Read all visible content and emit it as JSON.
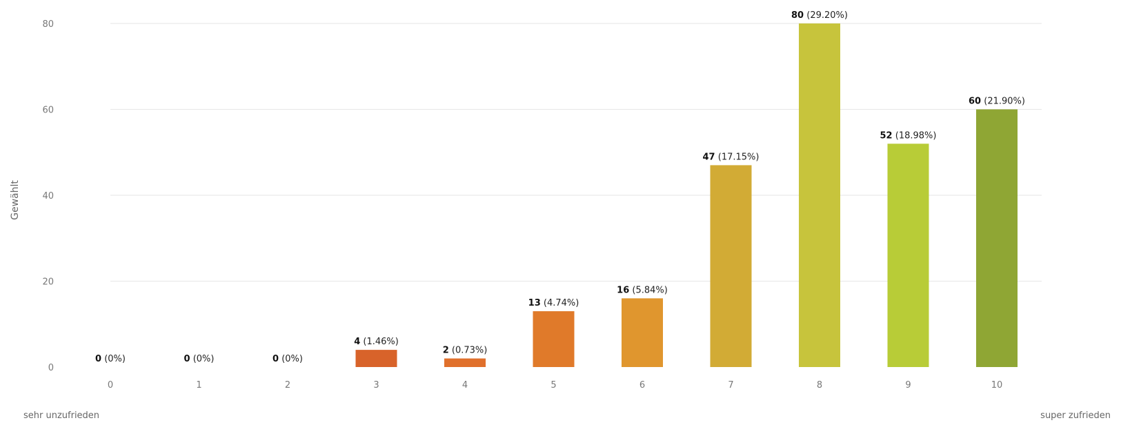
{
  "chart_data": {
    "type": "bar",
    "categories": [
      "0",
      "1",
      "2",
      "3",
      "4",
      "5",
      "6",
      "7",
      "8",
      "9",
      "10"
    ],
    "values": [
      0,
      0,
      0,
      4,
      2,
      13,
      16,
      47,
      80,
      52,
      60
    ],
    "percent_labels": [
      "(0%)",
      "(0%)",
      "(0%)",
      "(1.46%)",
      "(0.73%)",
      "(4.74%)",
      "(5.84%)",
      "(17.15%)",
      "(29.20%)",
      "(18.98%)",
      "(21.90%)"
    ],
    "colors": [
      "#c0392b",
      "#c84a27",
      "#d05a26",
      "#d8632a",
      "#e0702c",
      "#e07a2a",
      "#e0962e",
      "#d2ab35",
      "#c7c43c",
      "#b8cc37",
      "#8fa634"
    ],
    "ylabel": "Gewählt",
    "yticks": [
      "0",
      "20",
      "40",
      "60",
      "80"
    ],
    "ylim": [
      0,
      80
    ],
    "grid": true,
    "scale_low_label": "sehr unzufrieden",
    "scale_high_label": "super zufrieden"
  }
}
